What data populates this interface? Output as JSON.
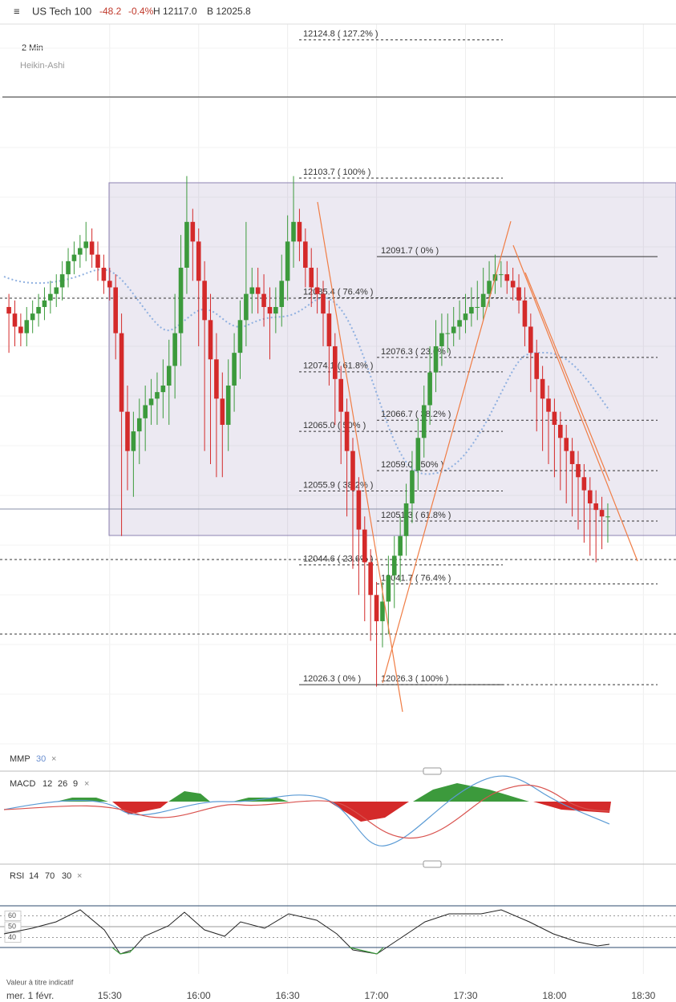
{
  "header": {
    "title": "US Tech 100",
    "change": "-48.2",
    "change_pct": "-0.4%",
    "high": "H 12117.0",
    "bid": "B 12025.8",
    "interval": "2 Min",
    "style": "Heikin-Ashi"
  },
  "indicators": {
    "mmp": {
      "name": "MMP",
      "params": [
        "30"
      ]
    },
    "macd": {
      "name": "MACD",
      "params": [
        "12",
        "26",
        "9"
      ]
    },
    "rsi": {
      "name": "RSI",
      "params": [
        "14",
        "70",
        "30"
      ],
      "ylim": [
        0,
        100
      ],
      "yticks": [
        60,
        50,
        40
      ]
    }
  },
  "footer": {
    "disclaimer": "Valeur à titre indicatif",
    "date": "mer. 1 févr."
  },
  "chart_data": {
    "type": "candlestick",
    "x": [
      "14:56",
      "14:58",
      "15:00",
      "15:02",
      "15:04",
      "15:06",
      "15:08",
      "15:10",
      "15:12",
      "15:14",
      "15:16",
      "15:18",
      "15:20",
      "15:22",
      "15:24",
      "15:26",
      "15:28",
      "15:30",
      "15:32",
      "15:34",
      "15:36",
      "15:38",
      "15:40",
      "15:42",
      "15:44",
      "15:46",
      "15:48",
      "15:50",
      "15:52",
      "15:54",
      "15:56",
      "15:58",
      "16:00",
      "16:02",
      "16:04",
      "16:06",
      "16:08",
      "16:10",
      "16:12",
      "16:14",
      "16:16",
      "16:18",
      "16:20",
      "16:22",
      "16:24",
      "16:26",
      "16:28",
      "16:30",
      "16:32",
      "16:34",
      "16:36",
      "16:38",
      "16:40",
      "16:42",
      "16:44",
      "16:46",
      "16:48",
      "16:50",
      "16:52",
      "16:54",
      "16:56",
      "16:58",
      "17:00",
      "17:02",
      "17:04",
      "17:06",
      "17:08",
      "17:10",
      "17:12",
      "17:14",
      "17:16",
      "17:18",
      "17:20",
      "17:22",
      "17:24",
      "17:26",
      "17:28",
      "17:30",
      "17:32",
      "17:34",
      "17:36",
      "17:38",
      "17:40",
      "17:42",
      "17:44",
      "17:46",
      "17:48",
      "17:50",
      "17:52",
      "17:54",
      "17:56",
      "17:58",
      "18:00",
      "18:02",
      "18:04",
      "18:06",
      "18:08",
      "18:10",
      "18:12",
      "18:14",
      "18:16",
      "18:18"
    ],
    "open": [
      12084,
      12083,
      12081,
      12080,
      12082,
      12083,
      12084,
      12085,
      12086,
      12087,
      12089,
      12091,
      12092,
      12093,
      12094,
      12092,
      12090,
      12088,
      12087,
      12080,
      12068,
      12062,
      12065,
      12067,
      12069,
      12070,
      12071,
      12072,
      12075,
      12080,
      12090,
      12097,
      12094,
      12088,
      12082,
      12076,
      12070,
      12066,
      12072,
      12077,
      12082,
      12086,
      12087,
      12086,
      12084,
      12083,
      12084,
      12088,
      12094,
      12097,
      12094,
      12090,
      12087,
      12086,
      12083,
      12078,
      12073,
      12068,
      12062,
      12056,
      12050,
      12045,
      12040,
      12036,
      12039,
      12043,
      12046,
      12049,
      12054,
      12059,
      12064,
      12069,
      12074,
      12078,
      12080,
      12080,
      12081,
      12082,
      12083,
      12084,
      12084,
      12086,
      12088,
      12089,
      12089,
      12088,
      12087,
      12085,
      12081,
      12077,
      12073,
      12070,
      12068,
      12066,
      12064,
      12062,
      12060,
      12058,
      12056,
      12054,
      12053,
      12052
    ],
    "high": [
      12086,
      12085,
      12083,
      12084,
      12085,
      12086,
      12087,
      12088,
      12089,
      12091,
      12093,
      12094,
      12095,
      12097,
      12096,
      12094,
      12092,
      12090,
      12089,
      12083,
      12072,
      12068,
      12070,
      12072,
      12073,
      12074,
      12076,
      12079,
      12086,
      12095,
      12104,
      12099,
      12096,
      12091,
      12086,
      12080,
      12074,
      12076,
      12080,
      12085,
      12097,
      12090,
      12090,
      12089,
      12087,
      12087,
      12092,
      12098,
      12104,
      12099,
      12096,
      12093,
      12090,
      12088,
      12085,
      12080,
      12075,
      12070,
      12064,
      12058,
      12052,
      12047,
      12042,
      12042,
      12046,
      12049,
      12052,
      12057,
      12062,
      12067,
      12072,
      12078,
      12082,
      12083,
      12083,
      12084,
      12085,
      12086,
      12087,
      12088,
      12090,
      12091,
      12092,
      12091,
      12091,
      12090,
      12089,
      12087,
      12083,
      12079,
      12075,
      12072,
      12070,
      12068,
      12066,
      12064,
      12062,
      12060,
      12058,
      12056,
      12055,
      12054
    ],
    "low": [
      12077,
      12078,
      12078,
      12078,
      12080,
      12081,
      12082,
      12083,
      12084,
      12085,
      12087,
      12089,
      12090,
      12091,
      12090,
      12088,
      12086,
      12085,
      12076,
      12049,
      12056,
      12055,
      12060,
      12062,
      12066,
      12066,
      12067,
      12066,
      12070,
      12075,
      12086,
      12088,
      12078,
      12062,
      12060,
      12058,
      12058,
      12062,
      12068,
      12073,
      12078,
      12083,
      12083,
      12081,
      12076,
      12080,
      12081,
      12085,
      12090,
      12091,
      12087,
      12084,
      12083,
      12078,
      12072,
      12066,
      12060,
      12052,
      12044,
      12040,
      12036,
      12033,
      12026,
      12032,
      12034,
      12038,
      12042,
      12046,
      12051,
      12056,
      12061,
      12066,
      12071,
      12075,
      12077,
      12078,
      12079,
      12080,
      12081,
      12082,
      12082,
      12084,
      12086,
      12087,
      12086,
      12085,
      12083,
      12078,
      12071,
      12065,
      12062,
      12060,
      12058,
      12056,
      12054,
      12052,
      12050,
      12048,
      12046,
      12045,
      12047,
      12048
    ],
    "close": [
      12083,
      12081,
      12080,
      12082,
      12083,
      12084,
      12085,
      12086,
      12087,
      12089,
      12091,
      12092,
      12093,
      12094,
      12092,
      12090,
      12088,
      12087,
      12080,
      12068,
      12062,
      12065,
      12067,
      12069,
      12070,
      12071,
      12072,
      12075,
      12080,
      12090,
      12097,
      12094,
      12088,
      12082,
      12076,
      12070,
      12066,
      12072,
      12077,
      12082,
      12086,
      12087,
      12086,
      12084,
      12083,
      12084,
      12088,
      12094,
      12097,
      12094,
      12090,
      12087,
      12086,
      12083,
      12078,
      12073,
      12068,
      12062,
      12056,
      12050,
      12045,
      12040,
      12036,
      12039,
      12043,
      12046,
      12049,
      12054,
      12059,
      12064,
      12069,
      12074,
      12078,
      12080,
      12080,
      12081,
      12082,
      12083,
      12084,
      12084,
      12086,
      12088,
      12089,
      12089,
      12088,
      12087,
      12085,
      12081,
      12077,
      12073,
      12070,
      12068,
      12066,
      12064,
      12062,
      12060,
      12058,
      12056,
      12054,
      12053,
      12052,
      12052
    ],
    "up_color": "#3c9a3c",
    "down_color": "#d42a2a",
    "ylim": [
      12016.4,
      12130.9
    ],
    "xlim": [
      "14:53",
      "18:41"
    ],
    "xticks": [
      "15:30",
      "16:00",
      "16:30",
      "17:00",
      "17:30",
      "18:00",
      "18:30"
    ],
    "fibonacci": [
      {
        "levels": [
          {
            "value": 12124.8,
            "label": "12124.8 ( 127.2% )"
          },
          {
            "value": 12103.7,
            "label": "12103.7 ( 100% )"
          },
          {
            "value": 12085.4,
            "label": "12085.4 ( 76.4% )"
          },
          {
            "value": 12074.1,
            "label": "12074.1 ( 61.8% )"
          },
          {
            "value": 12065.0,
            "label": "12065.0 ( 50% )"
          },
          {
            "value": 12055.9,
            "label": "12055.9 ( 38.2% )"
          },
          {
            "value": 12044.6,
            "label": "12044.6 ( 23.6% )"
          },
          {
            "value": 12026.3,
            "label": "12026.3 ( 0% )"
          }
        ]
      },
      {
        "levels": [
          {
            "value": 12091.7,
            "label": "12091.7 ( 0% )"
          },
          {
            "value": 12076.3,
            "label": "12076.3 ( 23.6% )"
          },
          {
            "value": 12066.7,
            "label": "12066.7 ( 38.2% )"
          },
          {
            "value": 12059.0,
            "label": "12059.0 ( 50% )"
          },
          {
            "value": 12051.3,
            "label": "12051.3 ( 61.8% )"
          },
          {
            "value": 12041.7,
            "label": "12041.7 ( 76.4% )"
          },
          {
            "value": 12026.3,
            "label": "12026.3 ( 100% )"
          }
        ]
      }
    ]
  }
}
